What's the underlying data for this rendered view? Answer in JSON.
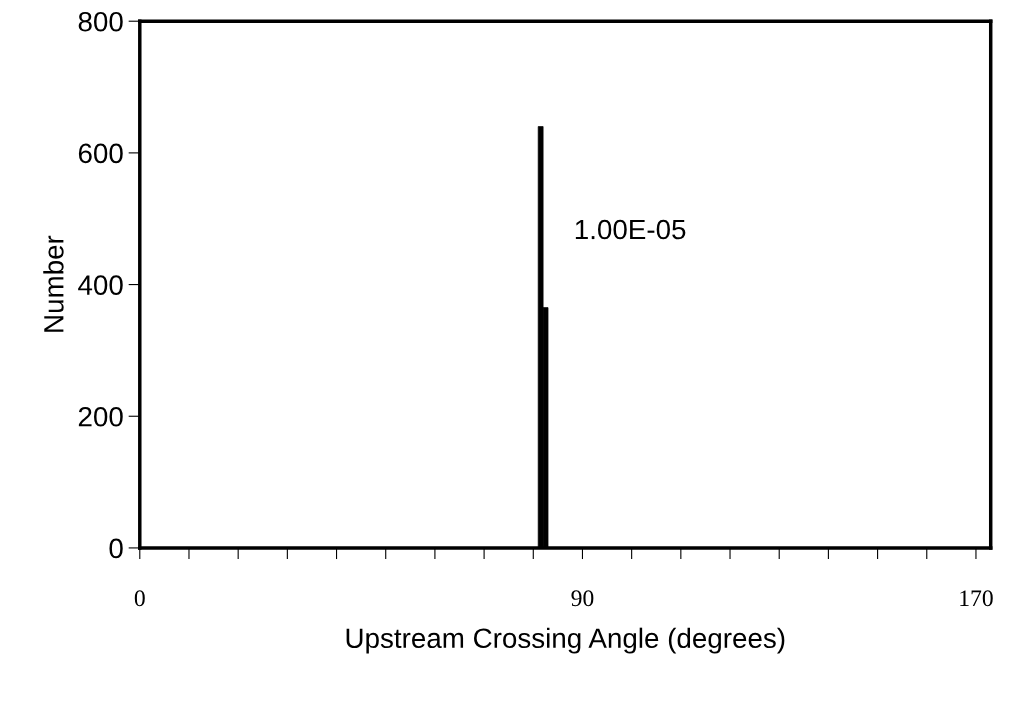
{
  "chart_data": {
    "type": "histogram",
    "xlabel": "Upstream Crossing Angle (degrees)",
    "ylabel": "Number",
    "bins": [
      81,
      82,
      83
    ],
    "values": [
      640,
      365
    ],
    "color": "#000000",
    "xlim": [
      0,
      173
    ],
    "xticks": [
      0,
      {
        "value": 10,
        "label": null
      },
      {
        "value": 20,
        "label": null
      },
      {
        "value": 30,
        "label": null
      },
      {
        "value": 40,
        "label": null
      },
      {
        "value": 50,
        "label": null
      },
      {
        "value": 60,
        "label": null
      },
      {
        "value": 70,
        "label": null
      },
      {
        "value": 80,
        "label": null
      },
      90,
      {
        "value": 100,
        "label": null
      },
      {
        "value": 110,
        "label": null
      },
      {
        "value": 120,
        "label": null
      },
      {
        "value": 130,
        "label": null
      },
      {
        "value": 140,
        "label": null
      },
      {
        "value": 150,
        "label": null
      },
      {
        "value": 160,
        "label": null
      },
      170
    ],
    "ylim": [
      0,
      800
    ],
    "yticks": [
      0,
      200,
      400,
      600,
      800
    ],
    "annotations": [
      "1.00E-05"
    ],
    "grid": false
  }
}
